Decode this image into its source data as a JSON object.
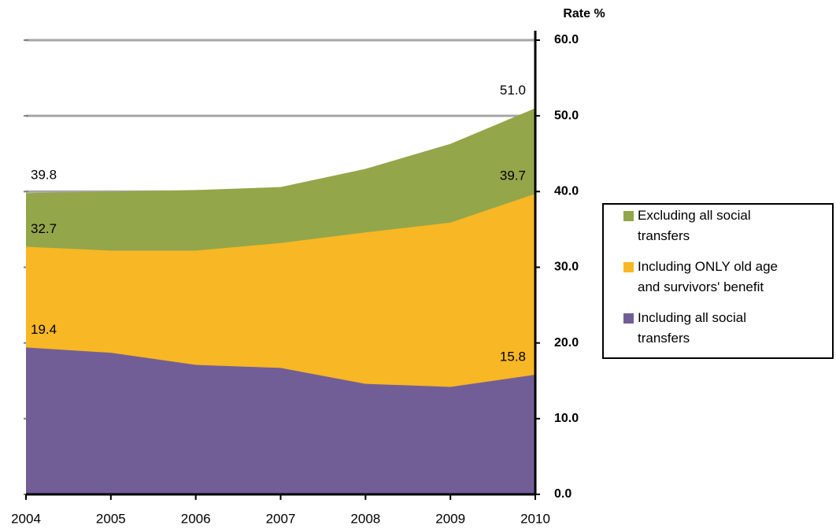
{
  "chart_data": {
    "type": "area",
    "y_axis_label": "Rate %",
    "categories": [
      "2004",
      "2005",
      "2006",
      "2007",
      "2008",
      "2009",
      "2010"
    ],
    "series": [
      {
        "name": "Excluding all social transfers",
        "color": "#94a64a",
        "values": [
          39.8,
          40.0,
          40.2,
          40.6,
          43.0,
          46.3,
          51.0
        ],
        "value_labels": [
          "39.8",
          null,
          null,
          null,
          null,
          null,
          "51.0"
        ]
      },
      {
        "name": "Including ONLY old age and survivors' benefit",
        "color": "#f8b724",
        "values": [
          32.7,
          32.2,
          32.2,
          33.2,
          34.6,
          35.9,
          39.7
        ],
        "value_labels": [
          "32.7",
          null,
          null,
          null,
          null,
          null,
          "39.7"
        ]
      },
      {
        "name": "Including all social transfers",
        "color": "#725e96",
        "values": [
          19.4,
          18.7,
          17.1,
          16.7,
          14.6,
          14.2,
          15.8
        ],
        "value_labels": [
          "19.4",
          null,
          null,
          null,
          null,
          null,
          "15.8"
        ]
      }
    ],
    "ylim": [
      0,
      60
    ],
    "yticks": [
      {
        "value": 0,
        "label": "0.0"
      },
      {
        "value": 10,
        "label": "10.0"
      },
      {
        "value": 20,
        "label": "20.0"
      },
      {
        "value": 30,
        "label": "30.0"
      },
      {
        "value": 40,
        "label": "40.0"
      },
      {
        "value": 50,
        "label": "50.0"
      },
      {
        "value": 60,
        "label": "60.0"
      }
    ],
    "grid": true,
    "legend": "right"
  }
}
